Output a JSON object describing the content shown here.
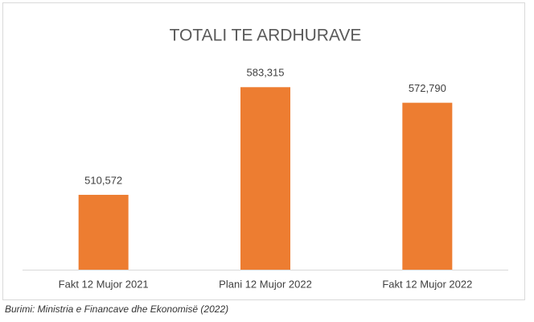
{
  "chart_data": {
    "type": "bar",
    "title": "TOTALI TE ARDHURAVE",
    "categories": [
      "Fakt 12 Mujor 2021",
      "Plani 12 Mujor 2022",
      "Fakt 12 Mujor 2022"
    ],
    "values": [
      510572,
      583315,
      572790
    ],
    "value_labels": [
      "510,572",
      "583,315",
      "572,790"
    ],
    "color": "#ed7d31",
    "ylim": [
      460000,
      590000
    ]
  },
  "source": "Burimi: Ministria e Financave dhe Ekonomisë (2022)"
}
